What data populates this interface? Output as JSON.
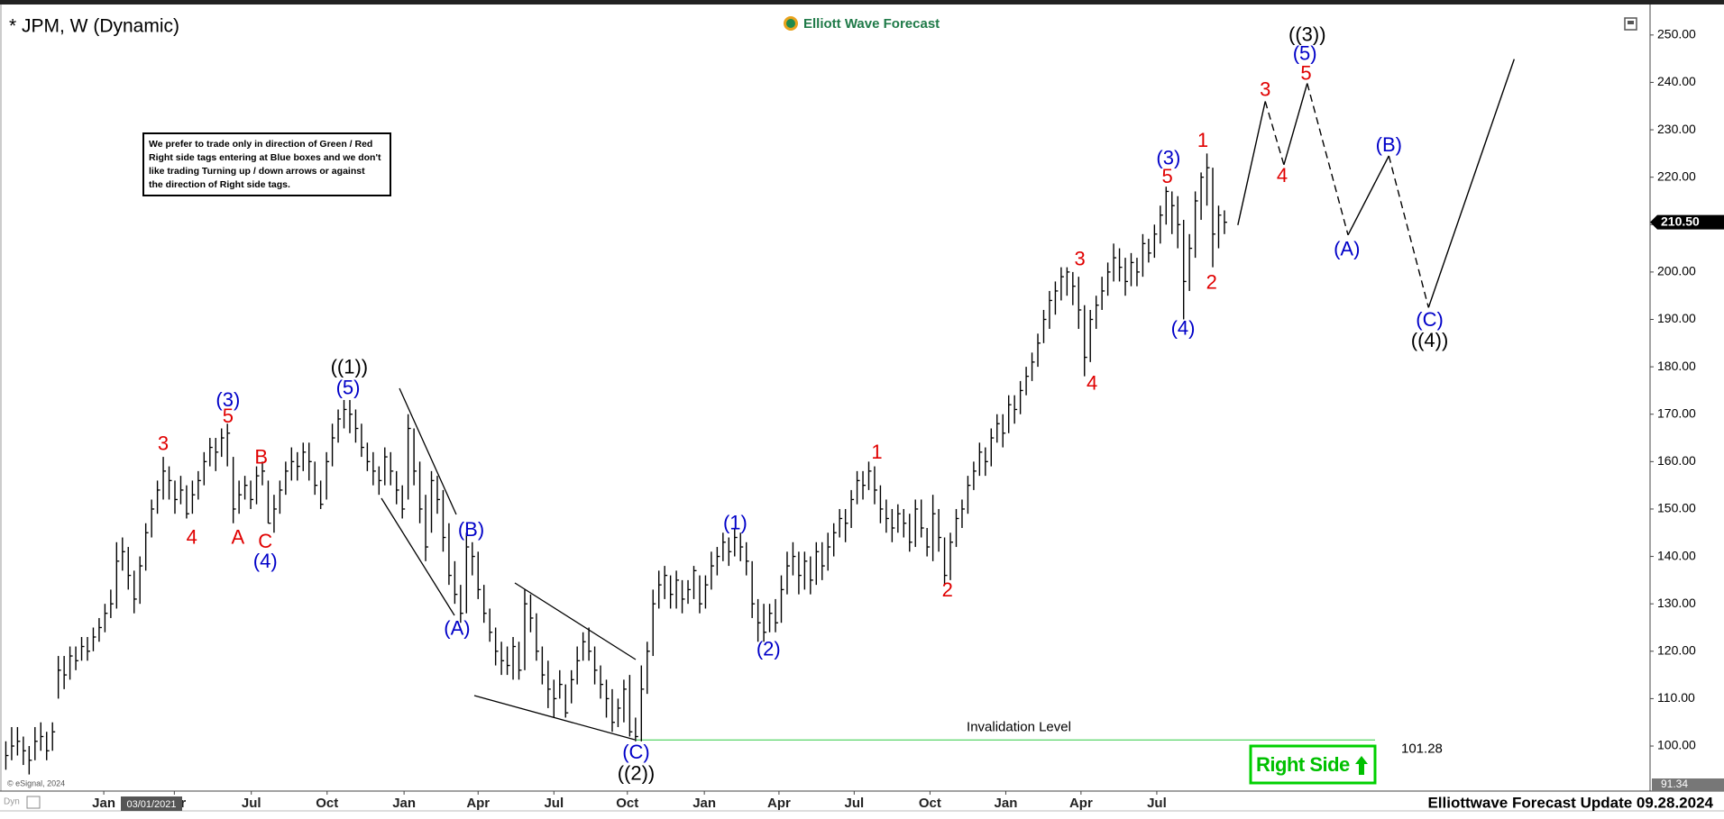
{
  "chart_data": {
    "type": "ohlc",
    "title": "* JPM, W (Dynamic)",
    "logo": "Elliott Wave Forecast",
    "notice": [
      "We prefer to trade only in direction of Green / Red",
      "Right side tags entering at Blue boxes and we don't",
      "like trading Turning up / down arrows or against",
      "the direction of Right side tags."
    ],
    "footer": "Elliottwave Forecast Update 09.28.2024",
    "copyright": "© eSignal, 2024",
    "corner_label": "Dyn",
    "cursor_date": "03/01/2021",
    "right_side": "Right Side",
    "bar_color": "#000000",
    "high": [
      101,
      104,
      104,
      102,
      100,
      104,
      105,
      103,
      105,
      119,
      119,
      121,
      121,
      123,
      123,
      125,
      127,
      130,
      133,
      143,
      144,
      142,
      137,
      140,
      147,
      152,
      156,
      161,
      159,
      156,
      157,
      155,
      156,
      158,
      162,
      165,
      165,
      167,
      168,
      161,
      156,
      157,
      156,
      159,
      160,
      156,
      153,
      156,
      160,
      163,
      162,
      164,
      164,
      160,
      156,
      162,
      168,
      171,
      173,
      173,
      171,
      168,
      164,
      162,
      159,
      163,
      162,
      158,
      155,
      170,
      167,
      160,
      153,
      158,
      157,
      154,
      147,
      139,
      134,
      145,
      143,
      141,
      134,
      129,
      125,
      122,
      121,
      123,
      122,
      133,
      132,
      128,
      121,
      118,
      114,
      116,
      113,
      116,
      121,
      124,
      125,
      121,
      117,
      114,
      112,
      110,
      114,
      115,
      106,
      117,
      122,
      133,
      137,
      138,
      136,
      137,
      135,
      135,
      138,
      136,
      136,
      141,
      142,
      145,
      144,
      146,
      145,
      143,
      139,
      131,
      130,
      130,
      131,
      136,
      141,
      143,
      141,
      141,
      140,
      143,
      143,
      145,
      147,
      150,
      150,
      154,
      158,
      158,
      160,
      159,
      155,
      152,
      150,
      151,
      150,
      149,
      152,
      152,
      146,
      153,
      150,
      144,
      145,
      150,
      152,
      157,
      160,
      164,
      163,
      167,
      170,
      170,
      174,
      174,
      177,
      180,
      183,
      187,
      192,
      196,
      198,
      201,
      201,
      200,
      199,
      193,
      192,
      195,
      199,
      202,
      206,
      205,
      203,
      204,
      203,
      208,
      207,
      210,
      214,
      218,
      217,
      216,
      211,
      208,
      217,
      221,
      225,
      222,
      214,
      213
    ],
    "low": [
      95,
      97,
      98,
      96,
      94,
      97,
      99,
      97,
      99,
      110,
      112,
      114,
      116,
      118,
      118,
      120,
      122,
      124,
      127,
      129,
      137,
      133,
      128,
      130,
      137,
      144,
      149,
      152,
      152,
      149,
      151,
      148,
      149,
      152,
      155,
      159,
      158,
      161,
      159,
      147,
      149,
      152,
      150,
      151,
      155,
      147,
      145,
      149,
      153,
      156,
      156,
      158,
      156,
      153,
      150,
      152,
      159,
      164,
      167,
      166,
      164,
      161,
      158,
      155,
      153,
      155,
      155,
      151,
      148,
      152,
      155,
      147,
      139,
      145,
      149,
      141,
      134,
      130,
      126,
      128,
      136,
      131,
      126,
      122,
      117,
      115,
      115,
      114,
      114,
      116,
      124,
      118,
      113,
      108,
      106,
      110,
      106,
      109,
      113,
      118,
      118,
      113,
      110,
      106,
      103,
      104,
      105,
      102,
      101,
      101,
      111,
      119,
      129,
      131,
      129,
      129,
      128,
      130,
      131,
      128,
      129,
      133,
      136,
      139,
      138,
      140,
      139,
      136,
      127,
      122,
      122,
      124,
      124,
      126,
      132,
      136,
      132,
      133,
      132,
      134,
      135,
      137,
      140,
      144,
      143,
      146,
      151,
      152,
      154,
      151,
      147,
      145,
      143,
      145,
      144,
      141,
      142,
      144,
      140,
      139,
      141,
      134,
      135,
      142,
      146,
      149,
      154,
      157,
      157,
      159,
      164,
      163,
      166,
      168,
      170,
      174,
      177,
      180,
      185,
      188,
      191,
      194,
      195,
      193,
      188,
      178,
      181,
      188,
      192,
      195,
      198,
      198,
      195,
      197,
      197,
      199,
      202,
      203,
      206,
      210,
      208,
      205,
      190,
      196,
      203,
      211,
      214,
      201,
      205,
      208
    ],
    "close": [
      98,
      100,
      101,
      99,
      97,
      101,
      102,
      99,
      103,
      116,
      115,
      119,
      118,
      121,
      120,
      123,
      125,
      128,
      130,
      139,
      141,
      136,
      131,
      138,
      145,
      150,
      154,
      158,
      156,
      152,
      154,
      149,
      153,
      156,
      160,
      163,
      162,
      165,
      166,
      150,
      153,
      155,
      152,
      157,
      158,
      147,
      150,
      154,
      158,
      160,
      159,
      162,
      160,
      155,
      151,
      160,
      165,
      169,
      171,
      170,
      167,
      163,
      160,
      158,
      156,
      161,
      158,
      154,
      150,
      167,
      158,
      150,
      142,
      156,
      152,
      144,
      136,
      132,
      128,
      142,
      140,
      133,
      128,
      124,
      120,
      118,
      117,
      121,
      116,
      130,
      127,
      120,
      115,
      112,
      110,
      113,
      107,
      114,
      118,
      122,
      120,
      116,
      113,
      110,
      105,
      108,
      112,
      103,
      102,
      112,
      120,
      130,
      134,
      136,
      132,
      135,
      131,
      133,
      137,
      130,
      134,
      138,
      140,
      143,
      141,
      144,
      142,
      139,
      130,
      126,
      124,
      128,
      126,
      133,
      138,
      140,
      136,
      139,
      135,
      141,
      138,
      142,
      145,
      148,
      147,
      152,
      156,
      155,
      158,
      154,
      150,
      148,
      146,
      149,
      147,
      143,
      150,
      146,
      142,
      149,
      144,
      136,
      143,
      148,
      150,
      155,
      158,
      162,
      160,
      165,
      168,
      166,
      172,
      171,
      175,
      178,
      181,
      185,
      190,
      194,
      196,
      199,
      200,
      197,
      192,
      182,
      190,
      193,
      196,
      200,
      203,
      201,
      198,
      202,
      200,
      206,
      204,
      208,
      212,
      217,
      214,
      210,
      198,
      205,
      215,
      220,
      222,
      208,
      212,
      210.5
    ],
    "xlim": [
      -1,
      282
    ],
    "ylim": [
      90.5,
      255.1
    ],
    "xticks": [
      {
        "value": 16.8,
        "label": "Jan"
      },
      {
        "value": 28.9,
        "label": "Apr"
      },
      {
        "value": 42.1,
        "label": "Jul"
      },
      {
        "value": 55.1,
        "label": "Oct"
      },
      {
        "value": 68.3,
        "label": "Jan"
      },
      {
        "value": 81,
        "label": "Apr"
      },
      {
        "value": 94,
        "label": "Jul"
      },
      {
        "value": 106.6,
        "label": "Oct"
      },
      {
        "value": 119.8,
        "label": "Jan"
      },
      {
        "value": 132.6,
        "label": "Apr"
      },
      {
        "value": 145.5,
        "label": "Jul"
      },
      {
        "value": 158.5,
        "label": "Oct"
      },
      {
        "value": 171.5,
        "label": "Jan"
      },
      {
        "value": 184.4,
        "label": "Apr"
      },
      {
        "value": 197.4,
        "label": "Jul"
      }
    ],
    "yticks": [
      {
        "value": 100,
        "label": "100.00"
      },
      {
        "value": 110,
        "label": "110.00"
      },
      {
        "value": 120,
        "label": "120.00"
      },
      {
        "value": 130,
        "label": "130.00"
      },
      {
        "value": 140,
        "label": "140.00"
      },
      {
        "value": 150,
        "label": "150.00"
      },
      {
        "value": 160,
        "label": "160.00"
      },
      {
        "value": 170,
        "label": "170.00"
      },
      {
        "value": 180,
        "label": "180.00"
      },
      {
        "value": 190,
        "label": "190.00"
      },
      {
        "value": 200,
        "label": "200.00"
      },
      {
        "value": 210,
        "label": "210.00"
      },
      {
        "value": 220,
        "label": "220.00"
      },
      {
        "value": 230,
        "label": "230.00"
      },
      {
        "value": 240,
        "label": "240.00"
      },
      {
        "value": 250,
        "label": "250.00"
      }
    ],
    "last_price": {
      "value": 210.5,
      "label": "210.50"
    },
    "cursor_price": 91.34,
    "invalidation": {
      "label": "Invalidation Level",
      "value": 101.28,
      "color": "#2ecc40"
    },
    "projection": {
      "x": [
        211.3,
        216,
        219.2,
        223.2,
        230.2,
        237.2,
        244,
        258.7
      ],
      "values": [
        209.9,
        236,
        222.6,
        239.8,
        207.8,
        224.5,
        192.5,
        244.9
      ],
      "dashed": [
        false,
        true,
        false,
        true,
        false,
        true,
        false
      ]
    },
    "annotations": [
      {
        "text": "3",
        "x": 27,
        "y": 163.5,
        "color": "#e00000"
      },
      {
        "text": "4",
        "x": 31.9,
        "y": 143.8,
        "color": "#e00000"
      },
      {
        "text": "(3)",
        "x": 38.1,
        "y": 172.8,
        "color": "#0000c8"
      },
      {
        "text": "5",
        "x": 38.1,
        "y": 169.3,
        "color": "#e00000"
      },
      {
        "text": "A",
        "x": 39.8,
        "y": 143.8,
        "color": "#e00000"
      },
      {
        "text": "B",
        "x": 43.8,
        "y": 160.7,
        "color": "#e00000"
      },
      {
        "text": "C",
        "x": 44.5,
        "y": 142.9,
        "color": "#e00000"
      },
      {
        "text": "(4)",
        "x": 44.5,
        "y": 138.7,
        "color": "#0000c8"
      },
      {
        "text": "((1))",
        "x": 58.9,
        "y": 179.7,
        "color": "#000000"
      },
      {
        "text": "(5)",
        "x": 58.7,
        "y": 175.3,
        "color": "#0000c8"
      },
      {
        "text": "(B)",
        "x": 79.8,
        "y": 145.4,
        "color": "#0000c8"
      },
      {
        "text": "(A)",
        "x": 77.4,
        "y": 124.6,
        "color": "#0000c8"
      },
      {
        "text": "(C)",
        "x": 108.1,
        "y": 98.4,
        "color": "#0000c8"
      },
      {
        "text": "((2))",
        "x": 108.1,
        "y": 94,
        "color": "#000000"
      },
      {
        "text": "(1)",
        "x": 125.1,
        "y": 146.8,
        "color": "#0000c8"
      },
      {
        "text": "(2)",
        "x": 130.8,
        "y": 120.2,
        "color": "#0000c8"
      },
      {
        "text": "1",
        "x": 149.4,
        "y": 161.7,
        "color": "#e00000"
      },
      {
        "text": "2",
        "x": 161.5,
        "y": 132.7,
        "color": "#e00000"
      },
      {
        "text": "3",
        "x": 184.2,
        "y": 202.5,
        "color": "#e00000"
      },
      {
        "text": "4",
        "x": 186.3,
        "y": 176.3,
        "color": "#e00000"
      },
      {
        "text": "(3)",
        "x": 199.4,
        "y": 223.8,
        "color": "#0000c8"
      },
      {
        "text": "5",
        "x": 199.2,
        "y": 219.9,
        "color": "#e00000"
      },
      {
        "text": "(4)",
        "x": 201.9,
        "y": 187.9,
        "color": "#0000c8"
      },
      {
        "text": "1",
        "x": 205.3,
        "y": 227.5,
        "color": "#e00000"
      },
      {
        "text": "2",
        "x": 206.8,
        "y": 197.6,
        "color": "#e00000"
      },
      {
        "text": "3",
        "x": 216,
        "y": 238.2,
        "color": "#e00000"
      },
      {
        "text": "4",
        "x": 218.9,
        "y": 220.1,
        "color": "#e00000"
      },
      {
        "text": "((3))",
        "x": 223.2,
        "y": 249.8,
        "color": "#000000"
      },
      {
        "text": "(5)",
        "x": 222.8,
        "y": 245.8,
        "color": "#0000c8"
      },
      {
        "text": "5",
        "x": 223,
        "y": 241.7,
        "color": "#e00000"
      },
      {
        "text": "(A)",
        "x": 230,
        "y": 204.6,
        "color": "#0000c8"
      },
      {
        "text": "(B)",
        "x": 237.2,
        "y": 226.6,
        "color": "#0000c8"
      },
      {
        "text": "(C)",
        "x": 244.2,
        "y": 189.7,
        "color": "#0000c8"
      },
      {
        "text": "((4))",
        "x": 244.2,
        "y": 185.3,
        "color": "#000000"
      }
    ]
  }
}
